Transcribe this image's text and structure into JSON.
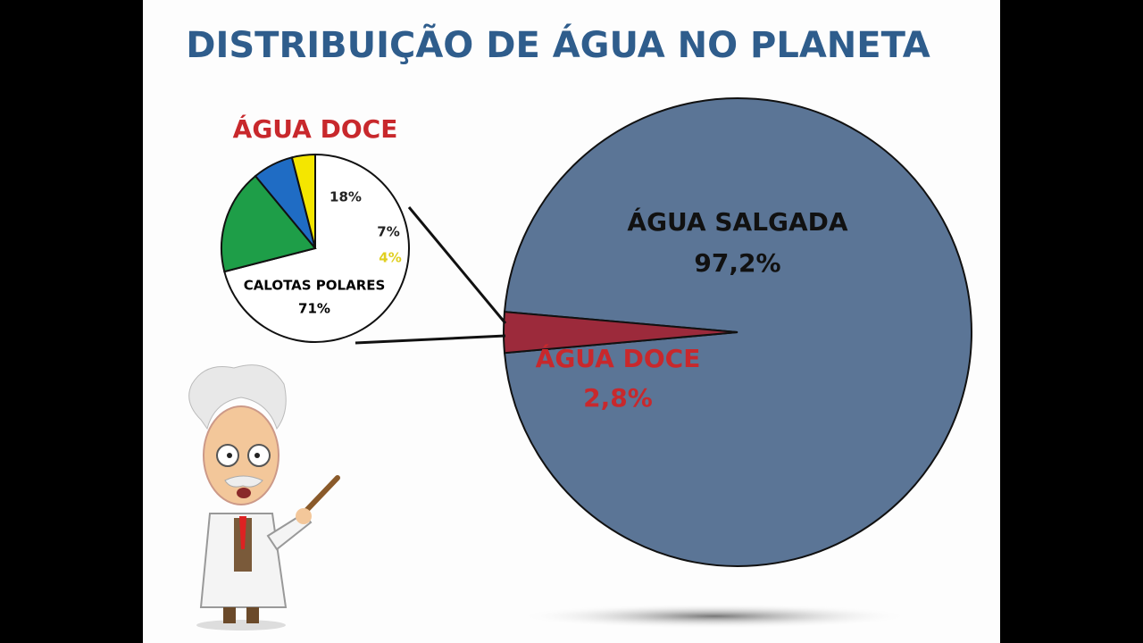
{
  "title": "DISTRIBUIÇÃO DE ÁGUA NO PLANETA",
  "chart_data": [
    {
      "type": "pie",
      "title": "ÁGUA DOCE",
      "categories": [
        "CALOTAS POLARES",
        null,
        null,
        null
      ],
      "values": [
        71,
        18,
        7,
        4
      ],
      "value_labels": [
        "71%",
        "18%",
        "7%",
        "4%"
      ],
      "colors": [
        "#ffffff",
        "#1e9e48",
        "#1f6cc4",
        "#f4e600"
      ]
    },
    {
      "type": "pie",
      "categories": [
        "ÁGUA SALGADA",
        "ÁGUA DOCE"
      ],
      "values": [
        97.2,
        2.8
      ],
      "value_labels": [
        "97,2%",
        "2,8%"
      ],
      "colors": [
        "#5b7596",
        "#9c2a3b"
      ]
    }
  ]
}
